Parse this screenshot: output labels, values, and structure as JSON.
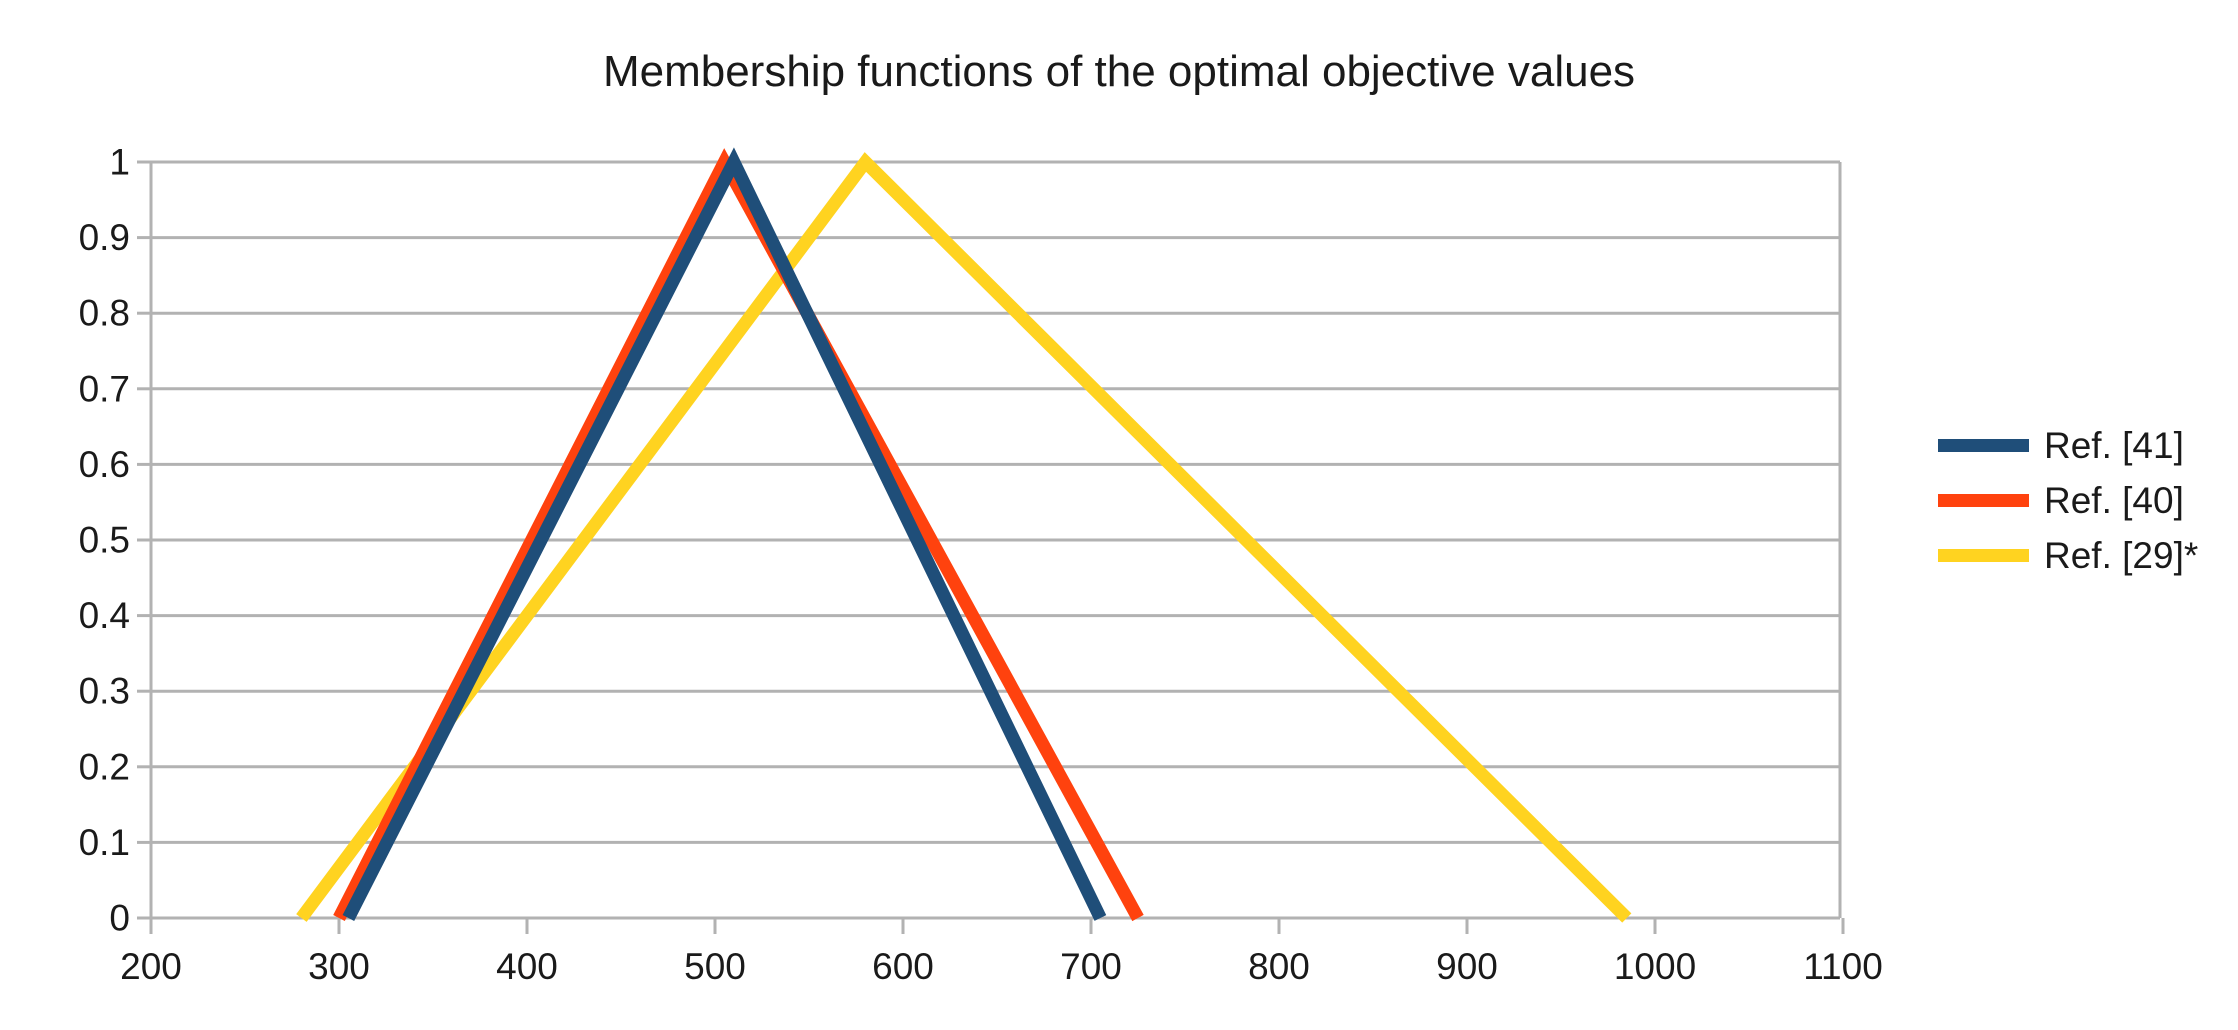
{
  "chart_data": {
    "type": "line",
    "title": "Membership functions of the optimal objective values",
    "xlabel": "",
    "ylabel": "",
    "xlim": [
      200,
      1100
    ],
    "ylim": [
      0,
      1
    ],
    "grid": true,
    "legend_position": "right",
    "x_ticks": [
      200,
      300,
      400,
      500,
      600,
      700,
      800,
      900,
      1000,
      1100
    ],
    "x_tick_labels": [
      "200",
      "300",
      "400",
      "500",
      "600",
      "700",
      "800",
      "900",
      "1000",
      "1100"
    ],
    "y_ticks": [
      0,
      0.1,
      0.2,
      0.3,
      0.4,
      0.5,
      0.6,
      0.7,
      0.8,
      0.9,
      1
    ],
    "y_tick_labels": [
      "0",
      "0.1",
      "0.2",
      "0.3",
      "0.4",
      "0.5",
      "0.6",
      "0.7",
      "0.8",
      "0.9",
      "1"
    ],
    "series": [
      {
        "name": "Ref. [29]*",
        "color": "#FFD320",
        "points": [
          [
            280,
            0
          ],
          [
            580,
            1
          ],
          [
            985,
            0
          ]
        ],
        "shape": "triangular membership function"
      },
      {
        "name": "Ref. [40]",
        "color": "#FF420E",
        "points": [
          [
            300,
            0
          ],
          [
            505,
            1
          ],
          [
            725,
            0
          ]
        ],
        "shape": "triangular membership function"
      },
      {
        "name": "Ref. [41]",
        "color": "#1F4E79",
        "points": [
          [
            305,
            0
          ],
          [
            510,
            1
          ],
          [
            705,
            0
          ]
        ],
        "shape": "triangular membership function"
      }
    ],
    "legend_order": [
      "Ref. [41]",
      "Ref. [40]",
      "Ref. [29]*"
    ],
    "colors": {
      "gridline": "#b2b2b2",
      "axis": "#b2b2b2",
      "tick_label": "#1a1a1a",
      "title": "#1a1a1a",
      "background": "#ffffff"
    }
  }
}
